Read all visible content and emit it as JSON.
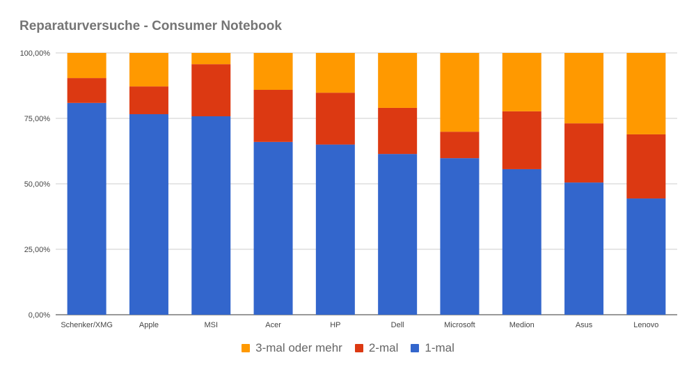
{
  "chart_data": {
    "type": "bar",
    "stacked": true,
    "title": "Reparaturversuche - Consumer Notebook",
    "xlabel": "",
    "ylabel": "",
    "ylim": [
      0,
      100
    ],
    "y_ticks": [
      "0,00%",
      "25,00%",
      "50,00%",
      "75,00%",
      "100,00%"
    ],
    "grid": true,
    "legend_position": "bottom",
    "categories": [
      "Schenker/XMG",
      "Apple",
      "MSI",
      "Acer",
      "HP",
      "Dell",
      "Microsoft",
      "Medion",
      "Asus",
      "Lenovo"
    ],
    "series": [
      {
        "name": "1-mal",
        "color": "#3366cc",
        "values": [
          80.9,
          76.6,
          75.8,
          66.0,
          65.0,
          61.4,
          59.8,
          55.6,
          50.5,
          44.4
        ]
      },
      {
        "name": "2-mal",
        "color": "#dc3912",
        "values": [
          9.5,
          10.6,
          19.9,
          19.9,
          19.8,
          17.6,
          10.1,
          22.1,
          22.6,
          24.5
        ]
      },
      {
        "name": "3-mal oder mehr",
        "color": "#ff9900",
        "values": [
          9.6,
          12.8,
          4.3,
          14.1,
          15.2,
          21.0,
          30.1,
          22.3,
          26.9,
          31.1
        ]
      }
    ],
    "legend_order": [
      "3-mal oder mehr",
      "2-mal",
      "1-mal"
    ]
  }
}
